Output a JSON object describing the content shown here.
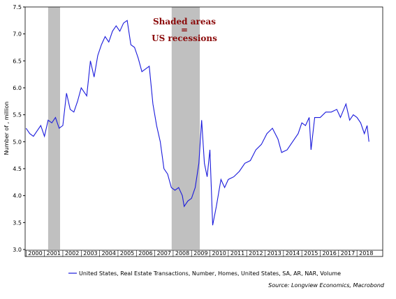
{
  "chart_data": {
    "type": "line",
    "ylabel": "Number of , million",
    "annotation": [
      "Shaded areas",
      "=",
      "US recessions"
    ],
    "source": "Source: Longview Economics, Macrobond",
    "recessions": [
      [
        2001.2,
        2001.85
      ],
      [
        2007.92,
        2009.45
      ]
    ],
    "recession_color": "#c0c0c0",
    "xlim": [
      1999.95,
      2019.4
    ],
    "xticks": [
      {
        "value": 2000.5,
        "label": "2000"
      },
      {
        "value": 2001.5,
        "label": "2001"
      },
      {
        "value": 2002.5,
        "label": "2002"
      },
      {
        "value": 2003.5,
        "label": "2003"
      },
      {
        "value": 2004.5,
        "label": "2004"
      },
      {
        "value": 2005.5,
        "label": "2005"
      },
      {
        "value": 2006.5,
        "label": "2006"
      },
      {
        "value": 2007.5,
        "label": "2007"
      },
      {
        "value": 2008.5,
        "label": "2008"
      },
      {
        "value": 2009.5,
        "label": "2009"
      },
      {
        "value": 2010.5,
        "label": "2010"
      },
      {
        "value": 2011.5,
        "label": "2011"
      },
      {
        "value": 2012.5,
        "label": "2012"
      },
      {
        "value": 2013.5,
        "label": "2013"
      },
      {
        "value": 2014.5,
        "label": "2014"
      },
      {
        "value": 2015.5,
        "label": "2015"
      },
      {
        "value": 2016.5,
        "label": "2016"
      },
      {
        "value": 2017.5,
        "label": "2017"
      },
      {
        "value": 2018.5,
        "label": "2018"
      }
    ],
    "ylim": [
      3.0,
      7.5
    ],
    "yticks": [
      {
        "value": 3,
        "label": "3.0"
      },
      3.5,
      {
        "value": 4,
        "label": "4.0"
      },
      4.5,
      {
        "value": 5,
        "label": "5.0"
      },
      5.5,
      {
        "value": 6,
        "label": "6.0"
      },
      6.5,
      {
        "value": 7,
        "label": "7.0"
      },
      7.5
    ],
    "x": [
      2000.0,
      2000.2,
      2000.4,
      2000.6,
      2000.8,
      2001.0,
      2001.2,
      2001.4,
      2001.6,
      2001.8,
      2002.0,
      2002.2,
      2002.4,
      2002.6,
      2002.8,
      2003.0,
      2003.3,
      2003.5,
      2003.7,
      2003.9,
      2004.1,
      2004.3,
      2004.5,
      2004.7,
      2004.9,
      2005.1,
      2005.3,
      2005.5,
      2005.7,
      2005.9,
      2006.1,
      2006.3,
      2006.5,
      2006.7,
      2006.9,
      2007.1,
      2007.3,
      2007.5,
      2007.7,
      2007.9,
      2008.1,
      2008.3,
      2008.5,
      2008.6,
      2008.8,
      2009.0,
      2009.2,
      2009.4,
      2009.55,
      2009.7,
      2009.85,
      2010.0,
      2010.15,
      2010.35,
      2010.6,
      2010.8,
      2011.0,
      2011.3,
      2011.6,
      2011.9,
      2012.2,
      2012.5,
      2012.8,
      2013.1,
      2013.4,
      2013.7,
      2013.9,
      2014.2,
      2014.5,
      2014.8,
      2015.0,
      2015.2,
      2015.4,
      2015.5,
      2015.7,
      2016.0,
      2016.3,
      2016.6,
      2016.9,
      2017.1,
      2017.4,
      2017.6,
      2017.8,
      2018.0,
      2018.2,
      2018.4,
      2018.55,
      2018.65
    ],
    "series": [
      {
        "name": "United States, Real Estate Transactions, Number, Homes, United States, SA, AR, NAR, Volume",
        "color": "#1a1adc",
        "values": [
          5.25,
          5.15,
          5.1,
          5.2,
          5.3,
          5.1,
          5.4,
          5.35,
          5.45,
          5.25,
          5.3,
          5.9,
          5.6,
          5.55,
          5.75,
          6.0,
          5.85,
          6.5,
          6.2,
          6.6,
          6.8,
          6.95,
          6.85,
          7.05,
          7.15,
          7.05,
          7.2,
          7.25,
          6.8,
          6.75,
          6.55,
          6.3,
          6.35,
          6.4,
          5.7,
          5.3,
          5.0,
          4.5,
          4.4,
          4.15,
          4.1,
          4.15,
          4.0,
          3.8,
          3.9,
          3.95,
          4.15,
          4.6,
          5.4,
          4.6,
          4.35,
          4.85,
          3.45,
          3.8,
          4.3,
          4.15,
          4.3,
          4.35,
          4.45,
          4.6,
          4.65,
          4.85,
          4.95,
          5.15,
          5.25,
          5.05,
          4.8,
          4.85,
          5.0,
          5.15,
          5.35,
          5.3,
          5.45,
          4.85,
          5.45,
          5.45,
          5.55,
          5.55,
          5.6,
          5.45,
          5.7,
          5.4,
          5.5,
          5.45,
          5.35,
          5.15,
          5.3,
          5.0
        ]
      }
    ]
  }
}
